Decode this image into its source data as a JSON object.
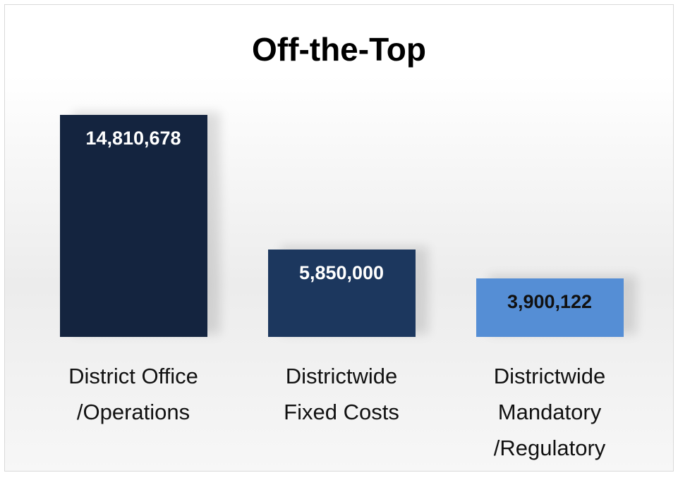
{
  "chart_data": {
    "type": "bar",
    "title": "Off-the-Top",
    "categories": [
      "District Office /Operations",
      "Districtwide Fixed Costs",
      "Districtwide Mandatory /Regulatory"
    ],
    "values": [
      14810678,
      5850000,
      3900122
    ],
    "value_labels": [
      "14,810,678",
      "5,850,000",
      "3,900,122"
    ],
    "colors": [
      "#14243f",
      "#1c375e",
      "#558ed5"
    ],
    "value_label_colors": [
      "#ffffff",
      "#ffffff",
      "#111111"
    ]
  }
}
